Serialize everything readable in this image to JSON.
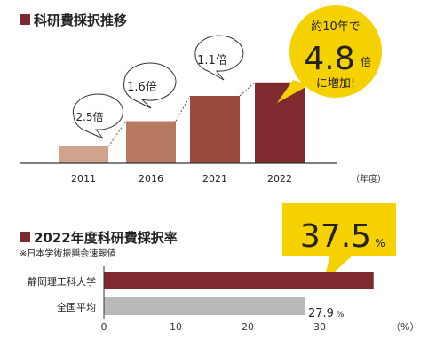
{
  "chart_data": [
    {
      "type": "bar",
      "title": "科研費採択推移",
      "categories": [
        "2011",
        "2016",
        "2021",
        "2022"
      ],
      "values": [
        1.0,
        2.5,
        4.0,
        4.8
      ],
      "ratio_labels": [
        "2.5倍",
        "1.6倍",
        "1.1倍"
      ],
      "unit_label": "（年度）",
      "callout": {
        "line1": "約10年で",
        "big_value": "4.8",
        "big_unit": "倍",
        "line3": "に増加!"
      },
      "colors": [
        "#d0a38f",
        "#b77960",
        "#9a4a3c",
        "#7e2a2f"
      ],
      "grid": false
    },
    {
      "type": "bar",
      "orientation": "horizontal",
      "title": "2022年度科研費採択率",
      "subtitle": "※日本学術振興会速報値",
      "categories": [
        "静岡理工科大学",
        "全国平均"
      ],
      "values": [
        37.5,
        27.9
      ],
      "value_labels": [
        "37.5",
        "27.9"
      ],
      "value_unit": "%",
      "xlim": [
        0,
        40
      ],
      "xticks": [
        "0",
        "10",
        "20",
        "30"
      ],
      "xlabel": "（%）",
      "colors": [
        "#7e2a2f",
        "#b9b9b9"
      ],
      "callout_color": "#f6d100",
      "grid": false
    }
  ]
}
